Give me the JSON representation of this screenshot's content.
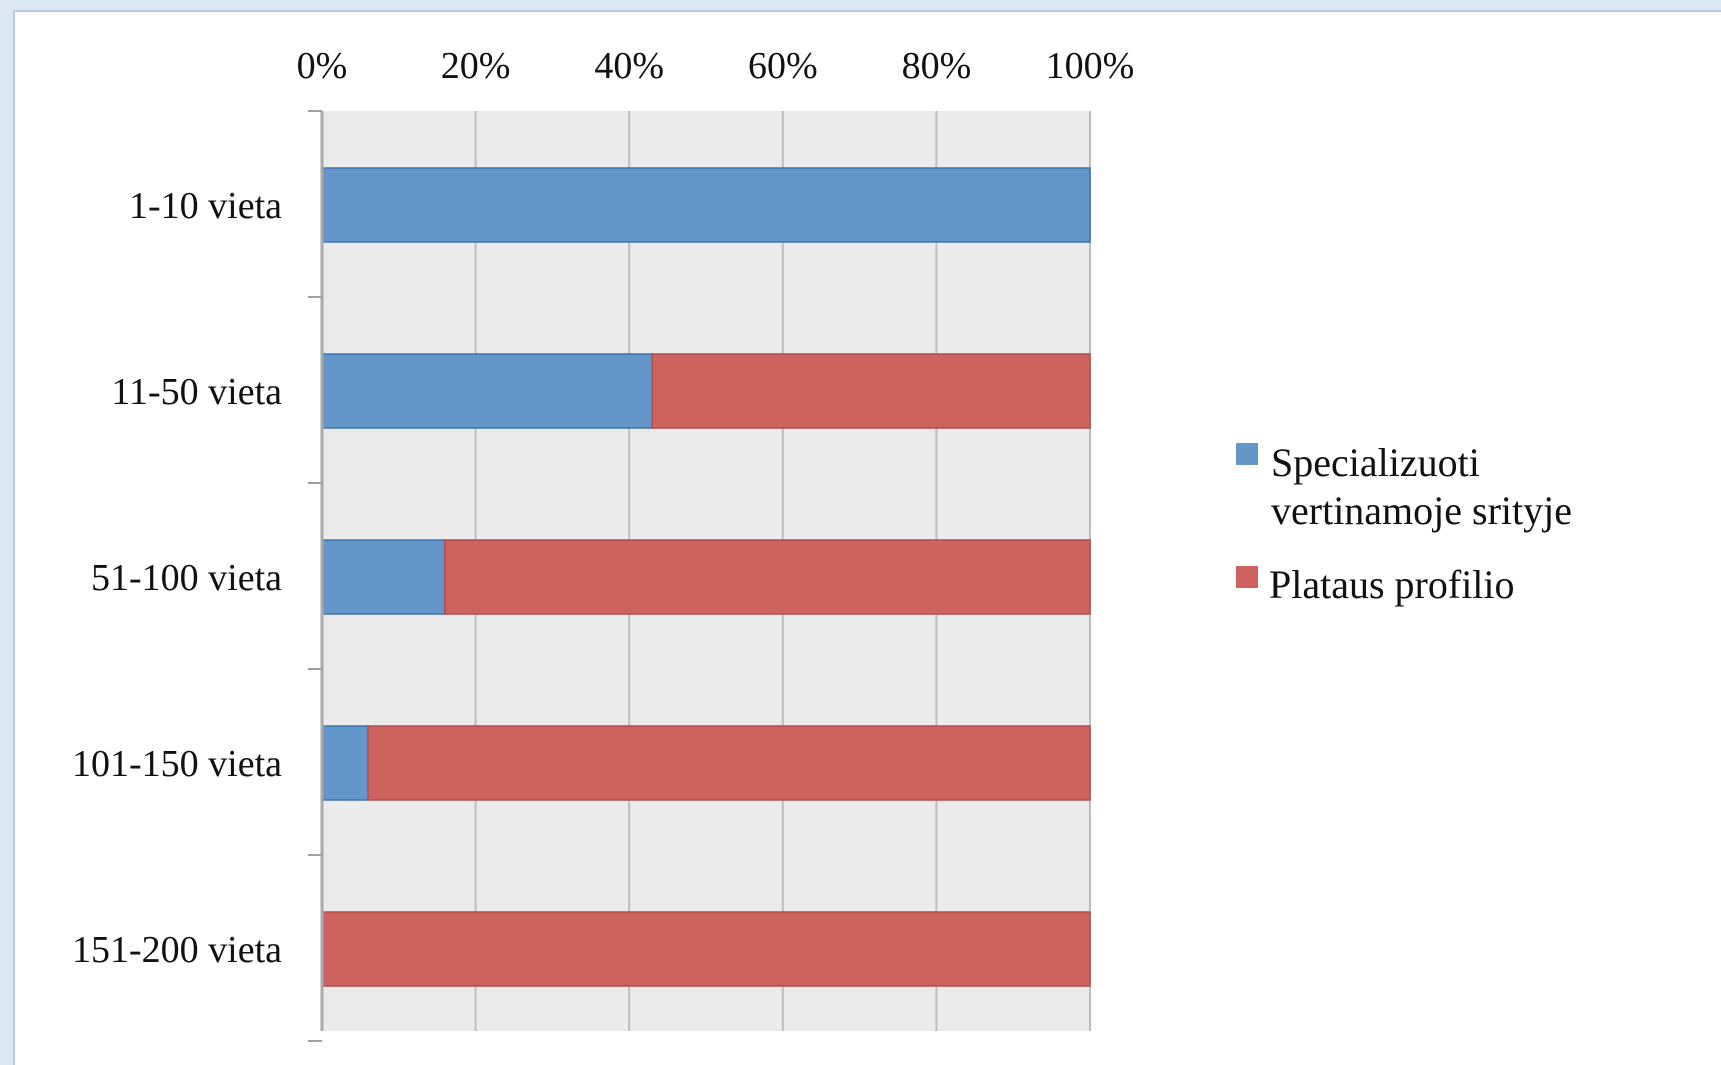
{
  "chart_data": {
    "type": "bar",
    "orientation": "horizontal",
    "stacking": "percent",
    "categories": [
      "1-10 vieta",
      "11-50 vieta",
      "51-100 vieta",
      "101-150 vieta",
      "151-200 vieta"
    ],
    "series": [
      {
        "name": "Specializuoti vertinamoje srityje",
        "color": "#6497c9",
        "values": [
          100,
          43,
          16,
          6,
          0
        ]
      },
      {
        "name": "Plataus profilio",
        "color": "#cd625f",
        "values": [
          0,
          57,
          84,
          94,
          100
        ]
      }
    ],
    "x_ticks": [
      "0%",
      "20%",
      "40%",
      "60%",
      "80%",
      "100%"
    ],
    "x_axis_position": "top",
    "xlim": [
      0,
      100
    ],
    "grid": true,
    "legend_position": "right",
    "plot_background": "#ebebeb",
    "gridline_color": "#bdbdbd"
  }
}
